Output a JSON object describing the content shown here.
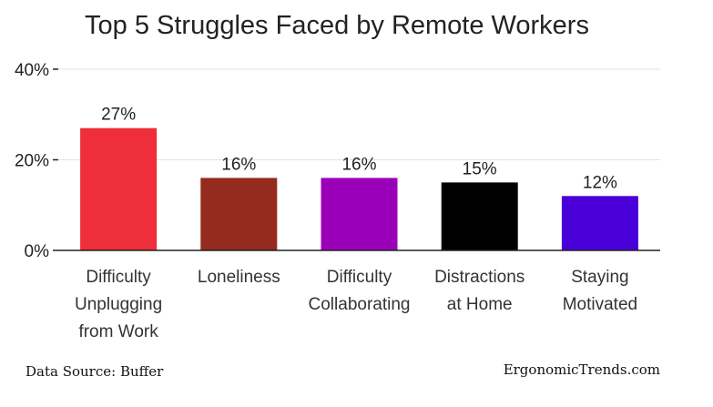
{
  "chart_data": {
    "type": "bar",
    "title": "Top 5 Struggles Faced by Remote Workers",
    "xlabel": "",
    "ylabel": "",
    "categories": [
      "Difficulty Unplugging from Work",
      "Loneliness",
      "Difficulty Collaborating",
      "Distractions at Home",
      "Staying Motivated"
    ],
    "category_lines": [
      [
        "Difficulty",
        "Unplugging",
        "from Work"
      ],
      [
        "Loneliness"
      ],
      [
        "Difficulty",
        "Collaborating"
      ],
      [
        "Distractions",
        "at Home"
      ],
      [
        "Staying",
        "Motivated"
      ]
    ],
    "values": [
      27,
      16,
      16,
      15,
      12
    ],
    "value_labels": [
      "27%",
      "16%",
      "16%",
      "15%",
      "12%"
    ],
    "colors": [
      "#ee2e3a",
      "#952a1e",
      "#9b00b9",
      "#000000",
      "#4a00d8"
    ],
    "ylim": [
      0,
      40
    ],
    "y_ticks": [
      0,
      20,
      40
    ],
    "y_tick_labels": [
      "0%",
      "20%",
      "40%"
    ],
    "grid": true
  },
  "footer": {
    "source": "Data Source: Buffer",
    "brand": "ErgonomicTrends.com"
  }
}
